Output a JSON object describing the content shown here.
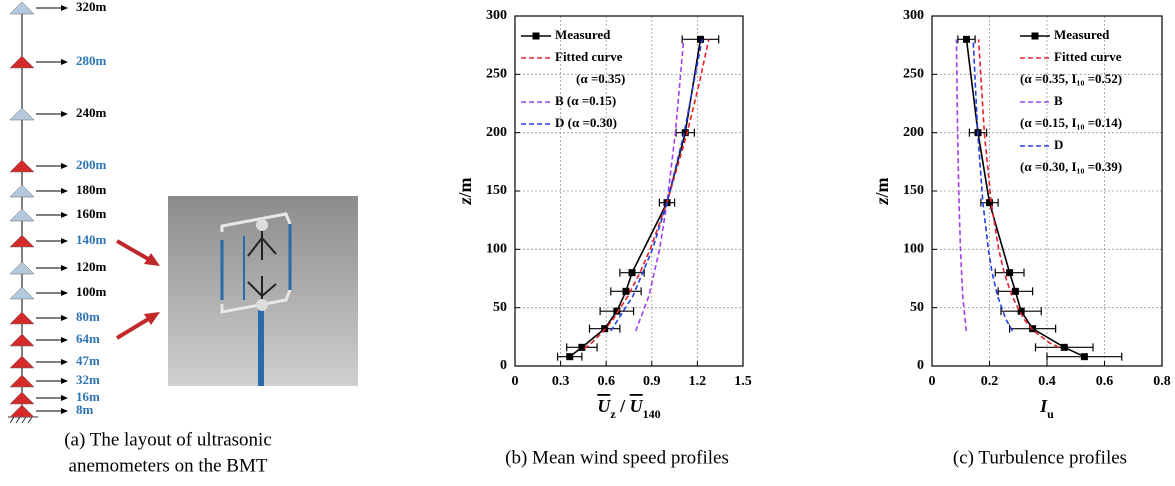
{
  "panel_a": {
    "levels": [
      {
        "label": "320m",
        "color": "#b4c9dc",
        "label_color": "#000000"
      },
      {
        "label": "280m",
        "color": "#d42a2a",
        "label_color": "#2e75b6"
      },
      {
        "label": "240m",
        "color": "#b4c9dc",
        "label_color": "#000000"
      },
      {
        "label": "200m",
        "color": "#d42a2a",
        "label_color": "#2e75b6"
      },
      {
        "label": "180m",
        "color": "#b4c9dc",
        "label_color": "#000000"
      },
      {
        "label": "160m",
        "color": "#b4c9dc",
        "label_color": "#000000"
      },
      {
        "label": "140m",
        "color": "#d42a2a",
        "label_color": "#2e75b6"
      },
      {
        "label": "120m",
        "color": "#b4c9dc",
        "label_color": "#000000"
      },
      {
        "label": "100m",
        "color": "#b4c9dc",
        "label_color": "#000000"
      },
      {
        "label": "80m",
        "color": "#d42a2a",
        "label_color": "#2e75b6"
      },
      {
        "label": "64m",
        "color": "#d42a2a",
        "label_color": "#2e75b6"
      },
      {
        "label": "47m",
        "color": "#d42a2a",
        "label_color": "#2e75b6"
      },
      {
        "label": "32m",
        "color": "#d42a2a",
        "label_color": "#2e75b6"
      },
      {
        "label": "16m",
        "color": "#d42a2a",
        "label_color": "#2e75b6"
      },
      {
        "label": "8m",
        "color": "#d42a2a",
        "label_color": "#2e75b6"
      }
    ],
    "caption": [
      "(a) The layout of ultrasonic",
      "anemometers on the BMT"
    ]
  },
  "chart_data": [
    {
      "type": "line",
      "caption": "(b) Mean wind speed profiles",
      "xlabel": [
        {
          "text": "U",
          "overline": true
        },
        {
          "text": "z",
          "sub": true
        },
        {
          "text": " / "
        },
        {
          "text": "U",
          "overline": true
        },
        {
          "text": "140",
          "sub": true
        }
      ],
      "ylabel": [
        {
          "text": "z",
          "italic": true
        },
        {
          "text": "/m"
        }
      ],
      "xlim": [
        0,
        1.5
      ],
      "ylim": [
        0,
        300
      ],
      "xticks": [
        0,
        0.3,
        0.6,
        0.9,
        1.2,
        1.5
      ],
      "yticks": [
        0,
        50,
        100,
        150,
        200,
        250,
        300
      ],
      "grid": true,
      "legend": "upper left",
      "series": [
        {
          "name": "Measured",
          "color": "#000000",
          "line_style": "solid",
          "marker": "square",
          "y": [
            8,
            16,
            32,
            47,
            64,
            80,
            140,
            200,
            280
          ],
          "x": [
            0.36,
            0.44,
            0.59,
            0.67,
            0.73,
            0.77,
            1.0,
            1.12,
            1.22
          ],
          "xerr": [
            0.08,
            0.1,
            0.1,
            0.11,
            0.1,
            0.08,
            0.05,
            0.06,
            0.12
          ]
        },
        {
          "name": "Fitted curve",
          "note": "(α =0.35)",
          "color": "#e8202a",
          "line_style": "dashed",
          "y": [
            15,
            20,
            30,
            40,
            60,
            80,
            100,
            140,
            200,
            240,
            280
          ],
          "x": [
            0.457,
            0.506,
            0.583,
            0.645,
            0.743,
            0.822,
            0.889,
            1.0,
            1.133,
            1.208,
            1.275
          ]
        },
        {
          "name": "B (α =0.15)",
          "color": "#a040f0",
          "line_style": "dashed",
          "y": [
            30,
            60,
            100,
            140,
            200,
            280
          ],
          "x": [
            0.794,
            0.881,
            0.951,
            1.0,
            1.055,
            1.11
          ]
        },
        {
          "name": "D (α =0.30)",
          "color": "#2040e0",
          "line_style": "dashed",
          "y": [
            30,
            60,
            100,
            140,
            200,
            280
          ],
          "x": [
            0.63,
            0.776,
            0.904,
            1.0,
            1.113,
            1.231
          ]
        }
      ]
    },
    {
      "type": "line",
      "caption": "(c) Turbulence profiles",
      "xlabel": [
        {
          "text": "I",
          "italic": true
        },
        {
          "text": "u",
          "sub": true
        }
      ],
      "ylabel": [
        {
          "text": "z",
          "italic": true
        },
        {
          "text": "/m"
        }
      ],
      "xlim": [
        0,
        0.8
      ],
      "ylim": [
        0,
        300
      ],
      "xticks": [
        0,
        0.2,
        0.4,
        0.6,
        0.8
      ],
      "yticks": [
        0,
        50,
        100,
        150,
        200,
        250,
        300
      ],
      "grid": true,
      "legend": "upper right",
      "series": [
        {
          "name": "Measured",
          "color": "#000000",
          "line_style": "solid",
          "marker": "square",
          "y": [
            8,
            16,
            32,
            47,
            64,
            80,
            140,
            200,
            280
          ],
          "x": [
            0.53,
            0.46,
            0.35,
            0.31,
            0.29,
            0.27,
            0.2,
            0.16,
            0.12
          ],
          "xerr": [
            0.13,
            0.1,
            0.08,
            0.07,
            0.06,
            0.05,
            0.03,
            0.03,
            0.03
          ]
        },
        {
          "name": "Fitted curve",
          "note": "(α =0.35, I₁₀ =0.52)",
          "color": "#e8202a",
          "line_style": "dashed",
          "y": [
            16,
            20,
            30,
            40,
            60,
            80,
            100,
            140,
            200,
            280
          ],
          "x": [
            0.441,
            0.408,
            0.354,
            0.32,
            0.278,
            0.251,
            0.232,
            0.206,
            0.182,
            0.162
          ]
        },
        {
          "name": "B",
          "note": "(α =0.15, I₁₀ =0.14)",
          "color": "#a040f0",
          "line_style": "dashed",
          "y": [
            30,
            60,
            100,
            140,
            200,
            280
          ],
          "x": [
            0.119,
            0.107,
            0.099,
            0.094,
            0.089,
            0.085
          ]
        },
        {
          "name": "D",
          "note": "(α =0.30, I₁₀ =0.39)",
          "color": "#2040e0",
          "line_style": "dashed",
          "y": [
            30,
            40,
            60,
            80,
            100,
            140,
            200,
            280
          ],
          "x": [
            0.28,
            0.257,
            0.228,
            0.209,
            0.196,
            0.177,
            0.159,
            0.143
          ]
        }
      ]
    }
  ]
}
